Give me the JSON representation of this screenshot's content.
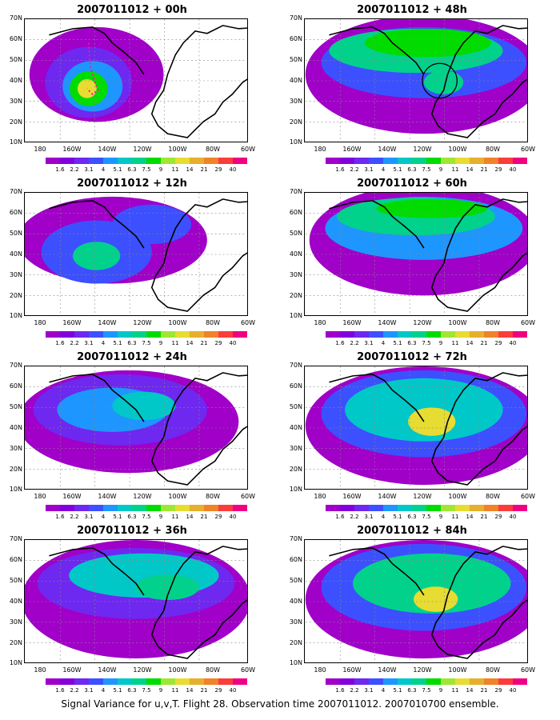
{
  "panels": [
    {
      "title": "2007011012 + 00h",
      "lead": "00h"
    },
    {
      "title": "2007011012 + 48h",
      "lead": "48h"
    },
    {
      "title": "2007011012 + 12h",
      "lead": "12h"
    },
    {
      "title": "2007011012 + 60h",
      "lead": "60h"
    },
    {
      "title": "2007011012 + 24h",
      "lead": "24h"
    },
    {
      "title": "2007011012 + 72h",
      "lead": "72h"
    },
    {
      "title": "2007011012 + 36h",
      "lead": "36h"
    },
    {
      "title": "2007011012 + 84h",
      "lead": "84h"
    }
  ],
  "y_labels": [
    "70N",
    "60N",
    "50N",
    "40N",
    "30N",
    "20N",
    "10N"
  ],
  "x_labels": [
    "180",
    "160W",
    "140W",
    "120W",
    "100W",
    "80W",
    "60W"
  ],
  "colorbar": {
    "labels": [
      "1.6",
      "2.2",
      "3.1",
      "4",
      "5.1",
      "6.3",
      "7.5",
      "9",
      "11",
      "14",
      "21",
      "29",
      "40"
    ],
    "colors": [
      "#a000c8",
      "#8200dc",
      "#6e28f0",
      "#3c50ff",
      "#1e96ff",
      "#00c8c8",
      "#00d28c",
      "#00dc00",
      "#a0e632",
      "#e6dc32",
      "#e6af2d",
      "#f08228",
      "#fa3c3c",
      "#f00082"
    ]
  },
  "caption": "Signal Variance for u,v,T. Flight 28. Observation time 2007011012. 2007010700 ensemble."
}
